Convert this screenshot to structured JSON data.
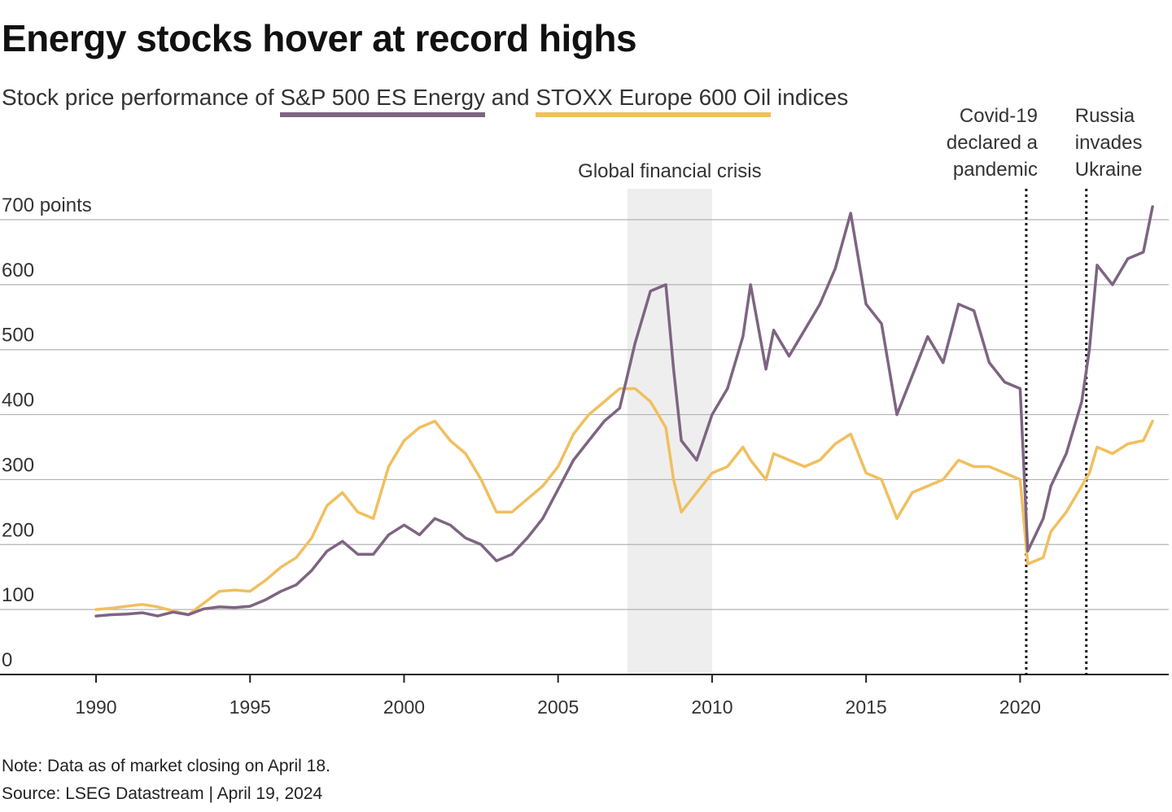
{
  "title": "Energy stocks hover at record highs",
  "subtitle": {
    "prefix": "Stock price performance of ",
    "series1": "S&P 500 ES Energy",
    "mid": " and ",
    "series2": "STOXX Europe 600 Oil",
    "suffix": " indices"
  },
  "note": "Note: Data as of market closing on April 18.",
  "source": "Source: LSEG Datastream | April 19, 2024",
  "colors": {
    "sp500": "#7e6482",
    "stoxx": "#f1bf5e",
    "grid": "#b3b3b3",
    "shade": "#eeeeee"
  },
  "chart_data": {
    "type": "line",
    "title": "Energy stocks hover at record highs",
    "xlabel": "",
    "ylabel": "points",
    "xlim": [
      1990,
      2024.35
    ],
    "ylim": [
      0,
      700
    ],
    "xticks": [
      1990,
      1995,
      2000,
      2005,
      2010,
      2015,
      2020
    ],
    "xtick_labels": [
      "1990",
      "1995",
      "2000",
      "2005",
      "2010",
      "2015",
      "2020"
    ],
    "yticks": [
      0,
      100,
      200,
      300,
      400,
      500,
      600,
      700
    ],
    "ytick_labels": [
      "0",
      "100",
      "200",
      "300",
      "400",
      "500",
      "600",
      "700 points"
    ],
    "grid": true,
    "annotations": [
      {
        "type": "shade",
        "x0": 2007.25,
        "x1": 2010.0,
        "lines": [
          "Global financial crisis"
        ]
      },
      {
        "type": "vline",
        "x": 2020.2,
        "lines": [
          "Covid-19",
          "declared a",
          "pandemic"
        ]
      },
      {
        "type": "vline",
        "x": 2022.15,
        "lines": [
          "Russia",
          "invades",
          "Ukraine"
        ]
      }
    ],
    "series": [
      {
        "name": "S&P 500 ES Energy",
        "x": [
          1990,
          1990.5,
          1991,
          1991.5,
          1992,
          1992.5,
          1993,
          1993.5,
          1994,
          1994.5,
          1995,
          1995.5,
          1996,
          1996.5,
          1997,
          1997.5,
          1998,
          1998.5,
          1999,
          1999.5,
          2000,
          2000.5,
          2001,
          2001.5,
          2002,
          2002.5,
          2003,
          2003.5,
          2004,
          2004.5,
          2005,
          2005.5,
          2006,
          2006.5,
          2007,
          2007.5,
          2008,
          2008.5,
          2008.75,
          2009,
          2009.5,
          2010,
          2010.5,
          2011,
          2011.25,
          2011.75,
          2012,
          2012.5,
          2013,
          2013.5,
          2014,
          2014.5,
          2015,
          2015.5,
          2016,
          2016.5,
          2017,
          2017.5,
          2018,
          2018.5,
          2019,
          2019.5,
          2020,
          2020.25,
          2020.75,
          2021,
          2021.5,
          2022,
          2022.25,
          2022.5,
          2023,
          2023.5,
          2024,
          2024.3
        ],
        "values": [
          90,
          92,
          93,
          95,
          90,
          96,
          92,
          101,
          104,
          103,
          105,
          115,
          128,
          138,
          160,
          190,
          205,
          185,
          185,
          215,
          230,
          215,
          240,
          230,
          210,
          200,
          175,
          185,
          210,
          240,
          285,
          330,
          360,
          390,
          410,
          510,
          590,
          600,
          470,
          360,
          330,
          400,
          440,
          520,
          600,
          470,
          530,
          490,
          530,
          570,
          625,
          710,
          570,
          540,
          400,
          460,
          520,
          480,
          570,
          560,
          480,
          450,
          440,
          190,
          240,
          290,
          340,
          420,
          500,
          630,
          600,
          640,
          650,
          720
        ]
      },
      {
        "name": "STOXX Europe 600 Oil",
        "x": [
          1990,
          1990.5,
          1991,
          1991.5,
          1992,
          1992.5,
          1993,
          1993.5,
          1994,
          1994.5,
          1995,
          1995.5,
          1996,
          1996.5,
          1997,
          1997.5,
          1998,
          1998.5,
          1999,
          1999.5,
          2000,
          2000.5,
          2001,
          2001.5,
          2002,
          2002.5,
          2003,
          2003.5,
          2004,
          2004.5,
          2005,
          2005.5,
          2006,
          2006.5,
          2007,
          2007.5,
          2008,
          2008.5,
          2008.75,
          2009,
          2009.5,
          2010,
          2010.5,
          2011,
          2011.25,
          2011.75,
          2012,
          2012.5,
          2013,
          2013.5,
          2014,
          2014.5,
          2015,
          2015.5,
          2016,
          2016.5,
          2017,
          2017.5,
          2018,
          2018.5,
          2019,
          2019.5,
          2020,
          2020.25,
          2020.75,
          2021,
          2021.5,
          2022,
          2022.25,
          2022.5,
          2023,
          2023.5,
          2024,
          2024.3
        ],
        "values": [
          100,
          102,
          105,
          108,
          104,
          98,
          92,
          110,
          128,
          130,
          128,
          145,
          165,
          180,
          210,
          260,
          280,
          250,
          240,
          320,
          360,
          380,
          390,
          360,
          340,
          300,
          250,
          250,
          270,
          290,
          320,
          370,
          400,
          420,
          440,
          440,
          420,
          380,
          300,
          250,
          280,
          310,
          320,
          350,
          330,
          300,
          340,
          330,
          320,
          330,
          355,
          370,
          310,
          300,
          240,
          280,
          290,
          300,
          330,
          320,
          320,
          310,
          300,
          170,
          180,
          220,
          250,
          290,
          310,
          350,
          340,
          355,
          360,
          390
        ]
      }
    ]
  }
}
